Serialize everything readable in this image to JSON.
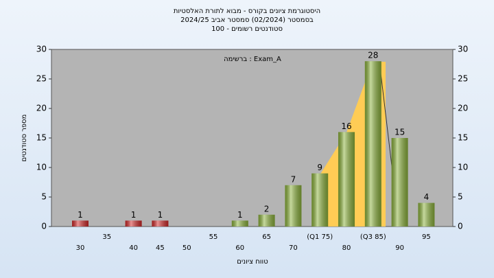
{
  "chart_data": {
    "type": "bar",
    "title": [
      "היסטוגרמת ציונים בקורס - מבוא לתורת האלסטיות",
      "בסמסטר  (02/2024)  סמסטר אביב 2024/25",
      "סטודנטים רשומים - 100"
    ],
    "annotation": "ברשימה : Exam_A",
    "x_label": "טווח ציונים",
    "y_label": "מספר סטודנטים",
    "categories": [
      "30",
      "35",
      "40",
      "45",
      "50",
      "55",
      "60",
      "65",
      "70",
      "(Q1 75)",
      "80",
      "(Q3 85)",
      "90",
      "95"
    ],
    "values": [
      1,
      0,
      1,
      1,
      0,
      0,
      1,
      2,
      7,
      9,
      16,
      28,
      15,
      4
    ],
    "colors": [
      "#d42a2a",
      "#d42a2a",
      "#d42a2a",
      "#d42a2a",
      "#d42a2a",
      "#8db43c",
      "#8db43c",
      "#8db43c",
      "#8db43c",
      "#8db43c",
      "#8db43c",
      "#8db43c",
      "#8db43c",
      "#8db43c"
    ],
    "ylim": [
      0,
      30
    ],
    "yticks": [
      0,
      5,
      10,
      15,
      20,
      25,
      30
    ]
  }
}
